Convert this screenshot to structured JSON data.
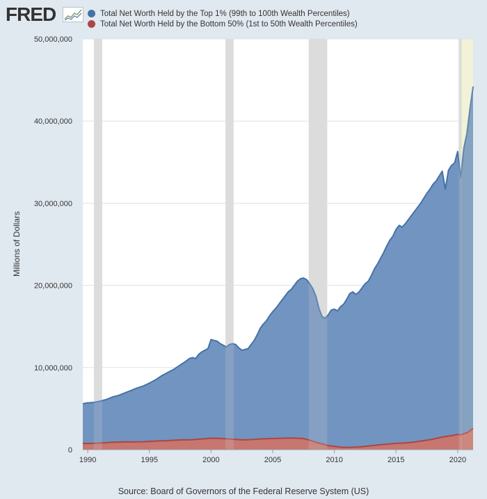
{
  "brand": {
    "logo_text": "FRED"
  },
  "source": "Source: Board of Governors of the Federal Reserve System (US)",
  "chart_data": {
    "type": "area",
    "title": "",
    "xlabel": "",
    "ylabel": "Millions of Dollars",
    "xlim": [
      1989.6,
      2021.25
    ],
    "ylim": [
      0,
      50000000
    ],
    "y_ticks": [
      0,
      10000000,
      20000000,
      30000000,
      40000000,
      50000000
    ],
    "y_tick_labels": [
      "0",
      "10,000,000",
      "20,000,000",
      "30,000,000",
      "40,000,000",
      "50,000,000"
    ],
    "x_ticks": [
      1990,
      1995,
      2000,
      2005,
      2010,
      2015,
      2020
    ],
    "x_tick_labels": [
      "1990",
      "1995",
      "2000",
      "2005",
      "2010",
      "2015",
      "2020"
    ],
    "grid": "horizontal",
    "legend_position": "top",
    "recessions": [
      [
        1990.5,
        1991.17
      ],
      [
        2001.17,
        2001.83
      ],
      [
        2007.92,
        2009.42
      ],
      [
        2020.08,
        2020.33
      ]
    ],
    "forecast_band": [
      2020.25,
      2021.25
    ],
    "colors": {
      "top1": "#4572a7",
      "top1_fill": "#7294c0",
      "bottom50": "#aa4643",
      "bottom50_fill": "#c77670",
      "recession": "#e0e0e0",
      "forecast_band": "#f3f2dc",
      "background": "#e1e9f0",
      "plot_bg": "#ffffff",
      "grid": "#dce3ea"
    },
    "series": [
      {
        "name": "Total Net Worth Held by the Top 1% (99th to 100th Wealth Percentiles)",
        "key": "top1",
        "x": [
          1989.6,
          1990,
          1990.5,
          1991,
          1991.5,
          1992,
          1992.5,
          1993,
          1993.5,
          1994,
          1994.5,
          1995,
          1995.5,
          1996,
          1996.5,
          1997,
          1997.5,
          1998,
          1998.25,
          1998.5,
          1998.75,
          1999,
          1999.25,
          1999.5,
          1999.75,
          2000,
          2000.25,
          2000.5,
          2000.75,
          2001,
          2001.25,
          2001.5,
          2001.75,
          2002,
          2002.25,
          2002.5,
          2002.75,
          2003,
          2003.25,
          2003.5,
          2003.75,
          2004,
          2004.25,
          2004.5,
          2004.75,
          2005,
          2005.25,
          2005.5,
          2005.75,
          2006,
          2006.25,
          2006.5,
          2006.75,
          2007,
          2007.25,
          2007.5,
          2007.75,
          2008,
          2008.25,
          2008.5,
          2008.75,
          2009,
          2009.25,
          2009.5,
          2009.75,
          2010,
          2010.25,
          2010.5,
          2010.75,
          2011,
          2011.25,
          2011.5,
          2011.75,
          2012,
          2012.25,
          2012.5,
          2012.75,
          2013,
          2013.25,
          2013.5,
          2013.75,
          2014,
          2014.25,
          2014.5,
          2014.75,
          2015,
          2015.25,
          2015.5,
          2015.75,
          2016,
          2016.25,
          2016.5,
          2016.75,
          2017,
          2017.25,
          2017.5,
          2017.75,
          2018,
          2018.25,
          2018.5,
          2018.75,
          2019,
          2019.25,
          2019.5,
          2019.75,
          2020,
          2020.25,
          2020.5,
          2020.75,
          2021,
          2021.25
        ],
        "values": [
          5600000,
          5700000,
          5750000,
          5900000,
          6100000,
          6400000,
          6600000,
          6900000,
          7200000,
          7500000,
          7750000,
          8100000,
          8500000,
          9000000,
          9400000,
          9800000,
          10300000,
          10800000,
          11100000,
          11200000,
          11100000,
          11600000,
          11900000,
          12100000,
          12300000,
          13400000,
          13300000,
          13200000,
          12900000,
          12700000,
          12500000,
          12800000,
          12900000,
          12800000,
          12400000,
          12100000,
          12200000,
          12300000,
          12800000,
          13300000,
          14000000,
          14800000,
          15300000,
          15700000,
          16300000,
          16800000,
          17200000,
          17700000,
          18200000,
          18700000,
          19200000,
          19500000,
          20000000,
          20500000,
          20800000,
          20900000,
          20700000,
          20200000,
          19600000,
          18700000,
          17200000,
          16200000,
          16000000,
          16400000,
          17000000,
          17100000,
          16900000,
          17400000,
          17700000,
          18300000,
          19000000,
          19200000,
          18900000,
          19200000,
          19700000,
          20200000,
          20500000,
          21200000,
          22000000,
          22600000,
          23300000,
          24000000,
          24800000,
          25500000,
          26000000,
          26800000,
          27300000,
          27100000,
          27500000,
          28000000,
          28500000,
          29000000,
          29500000,
          30000000,
          30600000,
          31200000,
          31700000,
          32300000,
          32700000,
          33300000,
          33900000,
          31700000,
          34000000,
          34600000,
          34900000,
          36300000,
          33100000,
          36700000,
          38500000,
          41500000,
          44200000
        ]
      },
      {
        "name": "Total Net Worth Held by the Bottom 50% (1st to 50th Wealth Percentiles)",
        "key": "bottom50",
        "x": [
          1989.6,
          1990,
          1990.5,
          1991,
          1991.5,
          1992,
          1992.5,
          1993,
          1993.5,
          1994,
          1994.5,
          1995,
          1995.5,
          1996,
          1996.5,
          1997,
          1997.5,
          1998,
          1998.5,
          1999,
          1999.5,
          2000,
          2000.5,
          2001,
          2001.5,
          2002,
          2002.5,
          2003,
          2003.5,
          2004,
          2004.5,
          2005,
          2005.5,
          2006,
          2006.5,
          2007,
          2007.5,
          2008,
          2008.5,
          2009,
          2009.5,
          2010,
          2010.5,
          2011,
          2011.5,
          2012,
          2012.5,
          2013,
          2013.5,
          2014,
          2014.5,
          2015,
          2015.5,
          2016,
          2016.5,
          2017,
          2017.5,
          2018,
          2018.5,
          2019,
          2019.5,
          2020,
          2020.25,
          2020.5,
          2020.75,
          2021,
          2021.25
        ],
        "values": [
          750000,
          760000,
          770000,
          800000,
          850000,
          900000,
          920000,
          950000,
          940000,
          950000,
          960000,
          1000000,
          1050000,
          1080000,
          1100000,
          1150000,
          1180000,
          1200000,
          1220000,
          1280000,
          1320000,
          1400000,
          1390000,
          1330000,
          1300000,
          1250000,
          1200000,
          1220000,
          1250000,
          1300000,
          1330000,
          1350000,
          1380000,
          1400000,
          1420000,
          1400000,
          1350000,
          1150000,
          900000,
          700000,
          500000,
          400000,
          300000,
          280000,
          300000,
          330000,
          400000,
          480000,
          560000,
          640000,
          700000,
          760000,
          800000,
          850000,
          930000,
          1050000,
          1150000,
          1280000,
          1450000,
          1600000,
          1700000,
          1850000,
          1800000,
          1950000,
          2050000,
          2300000,
          2600000
        ]
      }
    ]
  }
}
